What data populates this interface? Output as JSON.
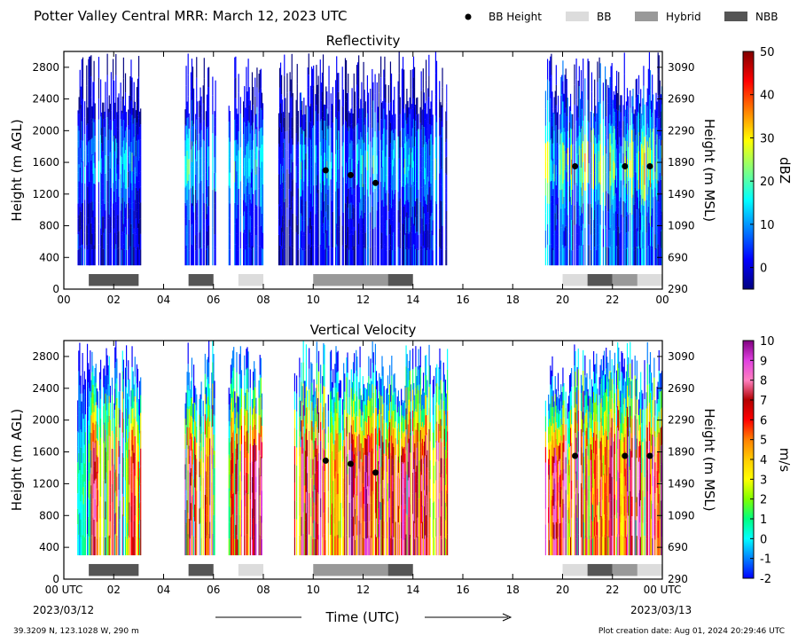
{
  "header": {
    "title": "Potter Valley Central MRR:  March 12, 2023 UTC",
    "legend": [
      {
        "label": "BB Height",
        "symbol": "dot",
        "color": "#000000"
      },
      {
        "label": "BB",
        "symbol": "swatch",
        "color": "#dcdcdc"
      },
      {
        "label": "Hybrid",
        "symbol": "swatch",
        "color": "#999999"
      },
      {
        "label": "NBB",
        "symbol": "swatch",
        "color": "#555555"
      }
    ]
  },
  "x_axis": {
    "label": "Time (UTC)",
    "ticks": [
      0,
      2,
      4,
      6,
      8,
      10,
      12,
      14,
      16,
      18,
      20,
      22,
      24
    ],
    "tick_labels_top": [
      "00",
      "02",
      "04",
      "06",
      "08",
      "10",
      "12",
      "14",
      "16",
      "18",
      "20",
      "22",
      "00"
    ],
    "tick_labels_bottom": [
      "00 UTC",
      "02",
      "04",
      "06",
      "08",
      "10",
      "12",
      "14",
      "16",
      "18",
      "20",
      "22",
      "00 UTC"
    ],
    "start_date": "2023/03/12",
    "end_date": "2023/03/13",
    "xlim": [
      0,
      24
    ]
  },
  "footer": {
    "location": "39.3209 N, 123.1028 W, 290 m",
    "creation": "Plot creation date: Aug 01, 2024 20:29:46 UTC"
  },
  "chart_data": [
    {
      "type": "heatmap",
      "title": "Reflectivity",
      "ylabel": "Height (m AGL)",
      "ylabel_right": "Height (m MSL)",
      "ylim": [
        0,
        3000
      ],
      "yticks": [
        0,
        400,
        800,
        1200,
        1600,
        2000,
        2400,
        2800
      ],
      "yticks_right": [
        0,
        400,
        800,
        1200,
        1600,
        2000,
        2400,
        2800
      ],
      "yticklabels_right": [
        "290",
        "690",
        "1090",
        "1490",
        "1890",
        "2290",
        "2690",
        "3090"
      ],
      "colorbar": {
        "label": "dBZ",
        "range": [
          -5,
          50
        ],
        "ticks": [
          0,
          10,
          20,
          30,
          40,
          50
        ],
        "colors": [
          "#000080",
          "#0000ff",
          "#0080ff",
          "#00ffff",
          "#80ff80",
          "#ffff00",
          "#ff8000",
          "#ff0000",
          "#800000"
        ]
      },
      "bb_height": [
        {
          "time": 10.5,
          "height": 1500
        },
        {
          "time": 11.5,
          "height": 1440
        },
        {
          "time": 12.5,
          "height": 1340
        },
        {
          "time": 20.5,
          "height": 1550
        },
        {
          "time": 22.5,
          "height": 1550
        },
        {
          "time": 23.5,
          "height": 1550
        }
      ],
      "bb_type_bars": [
        {
          "start": 1,
          "end": 3,
          "type": "NBB"
        },
        {
          "start": 5,
          "end": 6,
          "type": "NBB"
        },
        {
          "start": 7,
          "end": 8,
          "type": "BB"
        },
        {
          "start": 10,
          "end": 13,
          "type": "Hybrid"
        },
        {
          "start": 13,
          "end": 14,
          "type": "NBB"
        },
        {
          "start": 20,
          "end": 21,
          "type": "BB"
        },
        {
          "start": 21,
          "end": 22,
          "type": "NBB"
        },
        {
          "start": 22,
          "end": 23,
          "type": "Hybrid"
        },
        {
          "start": 23,
          "end": 24,
          "type": "BB"
        }
      ]
    },
    {
      "type": "heatmap",
      "title": "Vertical Velocity",
      "ylabel": "Height (m AGL)",
      "ylabel_right": "Height (m MSL)",
      "ylim": [
        0,
        3000
      ],
      "yticks": [
        0,
        400,
        800,
        1200,
        1600,
        2000,
        2400,
        2800
      ],
      "yticks_right": [
        0,
        400,
        800,
        1200,
        1600,
        2000,
        2400,
        2800
      ],
      "yticklabels_right": [
        "290",
        "690",
        "1090",
        "1490",
        "1890",
        "2290",
        "2690",
        "3090"
      ],
      "colorbar": {
        "label": "m/s",
        "range": [
          -2,
          10
        ],
        "ticks": [
          -2,
          -1,
          0,
          1,
          2,
          3,
          4,
          5,
          6,
          7,
          8,
          9,
          10
        ],
        "colors": [
          "#0000ff",
          "#0080ff",
          "#00ffff",
          "#00ff80",
          "#80ff00",
          "#ffff00",
          "#ffcc00",
          "#ff8000",
          "#ff0000",
          "#b40000",
          "#ff80c0",
          "#e040e0",
          "#800080"
        ]
      },
      "bb_height": [
        {
          "time": 10.5,
          "height": 1490
        },
        {
          "time": 11.5,
          "height": 1450
        },
        {
          "time": 12.5,
          "height": 1340
        },
        {
          "time": 20.5,
          "height": 1550
        },
        {
          "time": 22.5,
          "height": 1550
        },
        {
          "time": 23.5,
          "height": 1550
        }
      ],
      "bb_type_bars": [
        {
          "start": 1,
          "end": 3,
          "type": "NBB"
        },
        {
          "start": 5,
          "end": 6,
          "type": "NBB"
        },
        {
          "start": 7,
          "end": 8,
          "type": "BB"
        },
        {
          "start": 10,
          "end": 13,
          "type": "Hybrid"
        },
        {
          "start": 13,
          "end": 14,
          "type": "NBB"
        },
        {
          "start": 20,
          "end": 21,
          "type": "BB"
        },
        {
          "start": 21,
          "end": 22,
          "type": "NBB"
        },
        {
          "start": 22,
          "end": 23,
          "type": "Hybrid"
        },
        {
          "start": 23,
          "end": 24,
          "type": "BB"
        }
      ]
    }
  ]
}
